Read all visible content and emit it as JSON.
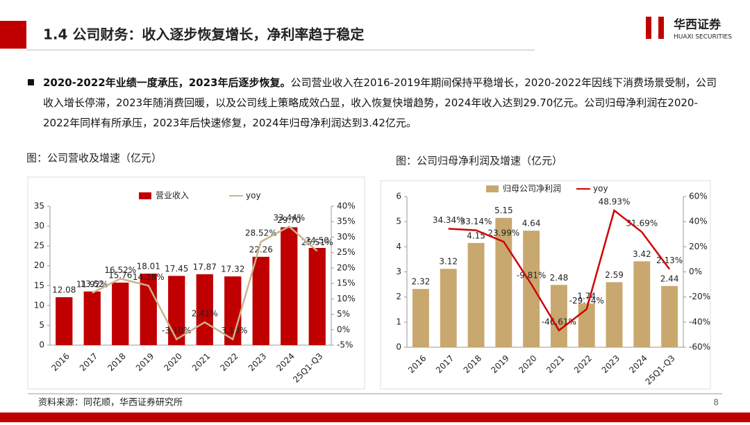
{
  "header": {
    "title": "1.4 公司财务：收入逐步恢复增长，净利率趋于稳定",
    "logo_cn": "华西证券",
    "logo_en": "HUAXI SECURITIES"
  },
  "body": {
    "bold": "2020-2022年业绩一度承压，2023年后逐步恢复。",
    "text": "公司营业收入在2016-2019年期间保持平稳增长，2020-2022年因线下消费场景受制，公司收入增长停滞，2023年随消费回暖，以及公司线上策略成效凸显，收入恢复快增趋势，2024年收入达到29.70亿元。公司归母净利润在2020-2022年同样有所承压，2023年后快速修复，2024年归母净利润达到3.42亿元。"
  },
  "chart_data": [
    {
      "type": "combo",
      "title": "图：公司营收及增速（亿元）",
      "legend": "top",
      "categories": [
        "2016",
        "2017",
        "2018",
        "2019",
        "2020",
        "2021",
        "2022",
        "2023",
        "2024",
        "25Q1-Q3"
      ],
      "series": [
        {
          "name": "营业收入",
          "type": "bar",
          "color": "#c00000",
          "values": [
            12.08,
            13.52,
            15.76,
            18.01,
            17.45,
            17.87,
            17.32,
            22.26,
            29.7,
            24.5
          ],
          "value_labels": [
            "12.08",
            "13.52",
            "15.76",
            "18.01",
            "17.45",
            "17.87",
            "17.32",
            "22.26",
            "29.70",
            "24.50"
          ]
        },
        {
          "name": "yoy",
          "type": "line",
          "axis": "y2",
          "color": "#c9b48c",
          "values": [
            null,
            11.92,
            16.52,
            14.28,
            -3.1,
            2.41,
            -3.1,
            28.52,
            33.44,
            25.51
          ],
          "value_labels": [
            null,
            "11.92%",
            "16.52%",
            "14.28%",
            "-3.10%",
            "2.41%",
            "-3.10%",
            "28.52%",
            "33.44%",
            "25.51%"
          ]
        }
      ],
      "ylim": [
        0,
        35
      ],
      "yticks": [
        0,
        5,
        10,
        15,
        20,
        25,
        30,
        35
      ],
      "y2lim": [
        -5,
        40
      ],
      "y2ticks": [
        {
          "value": -5,
          "label": "-5%"
        },
        {
          "value": 0,
          "label": "0%"
        },
        {
          "value": 5,
          "label": "5%"
        },
        {
          "value": 10,
          "label": "10%"
        },
        {
          "value": 15,
          "label": "15%"
        },
        {
          "value": 20,
          "label": "20%"
        },
        {
          "value": 25,
          "label": "25%"
        },
        {
          "value": 30,
          "label": "30%"
        },
        {
          "value": 35,
          "label": "35%"
        },
        {
          "value": 40,
          "label": "40%"
        }
      ]
    },
    {
      "type": "combo",
      "title": "图：公司归母净利润及增速（亿元）",
      "legend": "top",
      "categories": [
        "2016",
        "2017",
        "2018",
        "2019",
        "2020",
        "2021",
        "2022",
        "2023",
        "2024",
        "25Q1-Q3"
      ],
      "series": [
        {
          "name": "归母公司净利润",
          "type": "bar",
          "color": "#c8a86e",
          "values": [
            2.32,
            3.12,
            4.15,
            5.15,
            4.64,
            2.48,
            1.74,
            2.59,
            3.42,
            2.44
          ],
          "value_labels": [
            "2.32",
            "3.12",
            "4.15",
            "5.15",
            "4.64",
            "2.48",
            "1.74",
            "2.59",
            "3.42",
            "2.44"
          ]
        },
        {
          "name": "yoy",
          "type": "line",
          "axis": "y2",
          "color": "#d00000",
          "values": [
            null,
            34.34,
            33.14,
            23.99,
            -9.81,
            -46.61,
            -29.74,
            48.93,
            31.69,
            2.13
          ],
          "value_labels": [
            null,
            "34.34%",
            "33.14%",
            "23.99%",
            "-9.81%",
            "-46.61%",
            "-29.74%",
            "48.93%",
            "31.69%",
            "2.13%"
          ]
        }
      ],
      "ylim": [
        0,
        6
      ],
      "yticks": [
        0,
        1,
        2,
        3,
        4,
        5,
        6
      ],
      "y2lim": [
        -60,
        60
      ],
      "y2ticks": [
        {
          "value": -60,
          "label": "-60%"
        },
        {
          "value": -40,
          "label": "-40%"
        },
        {
          "value": -20,
          "label": "-20%"
        },
        {
          "value": 0,
          "label": "0%"
        },
        {
          "value": 20,
          "label": "20%"
        },
        {
          "value": 40,
          "label": "40%"
        },
        {
          "value": 60,
          "label": "60%"
        }
      ]
    }
  ],
  "footer": {
    "source": "资料来源：同花顺，华西证券研究所",
    "page": "8"
  }
}
